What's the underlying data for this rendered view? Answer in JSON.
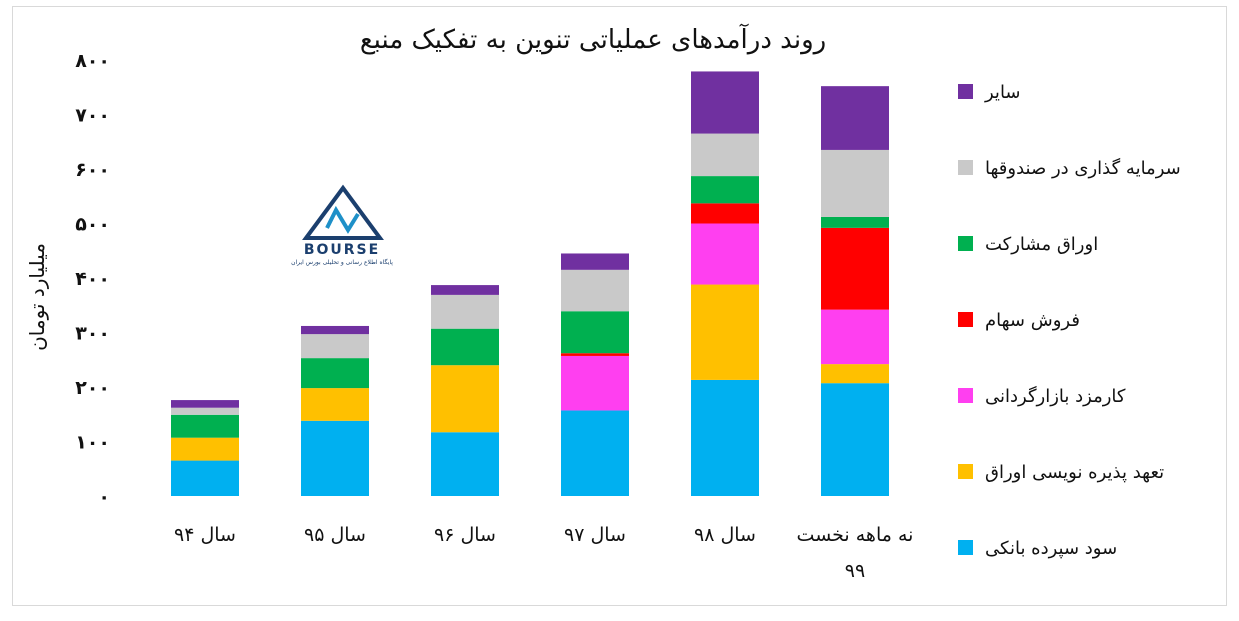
{
  "chart_data": {
    "type": "bar",
    "stacked": true,
    "title": "روند درآمدهای عملیاتی تنوین به تفکیک منبع",
    "ylabel": "میلیارد تومان",
    "ylim": [
      0,
      800
    ],
    "yticks": [
      {
        "value": 0,
        "label": "۰"
      },
      {
        "value": 100,
        "label": "۱۰۰"
      },
      {
        "value": 200,
        "label": "۲۰۰"
      },
      {
        "value": 300,
        "label": "۳۰۰"
      },
      {
        "value": 400,
        "label": "۴۰۰"
      },
      {
        "value": 500,
        "label": "۵۰۰"
      },
      {
        "value": 600,
        "label": "۶۰۰"
      },
      {
        "value": 700,
        "label": "۷۰۰"
      },
      {
        "value": 800,
        "label": "۸۰۰"
      }
    ],
    "categories": [
      "سال ۹۴",
      "سال ۹۵",
      "سال ۹۶",
      "سال ۹۷",
      "سال ۹۸",
      "نه ماهه نخست ۹۹"
    ],
    "series": [
      {
        "name": "سود سپرده بانکی",
        "color": "#00b0f0",
        "values": [
          65,
          138,
          117,
          157,
          213,
          207
        ]
      },
      {
        "name": "تعهد پذیره نویسی اوراق",
        "color": "#ffc000",
        "values": [
          42,
          60,
          123,
          0,
          175,
          35
        ]
      },
      {
        "name": "کارمزد بازارگردانی",
        "color": "#ff3ff0",
        "values": [
          0,
          0,
          0,
          100,
          112,
          100
        ]
      },
      {
        "name": "فروش سهام",
        "color": "#ff0000",
        "values": [
          0,
          0,
          0,
          5,
          37,
          150
        ]
      },
      {
        "name": "اوراق مشارکت",
        "color": "#00b050",
        "values": [
          42,
          55,
          67,
          77,
          50,
          20
        ]
      },
      {
        "name": "سرمایه گذاری در صندوقها",
        "color": "#c9c9c9",
        "values": [
          13,
          44,
          62,
          76,
          78,
          123
        ]
      },
      {
        "name": "سایر",
        "color": "#7030a0",
        "values": [
          14,
          15,
          18,
          30,
          114,
          117
        ]
      }
    ],
    "legend_position": "right",
    "grid": false
  },
  "logo": {
    "text": "BOURSE",
    "subtitle": "پایگاه اطلاع رسانی و تحلیلی بورس ایران"
  }
}
